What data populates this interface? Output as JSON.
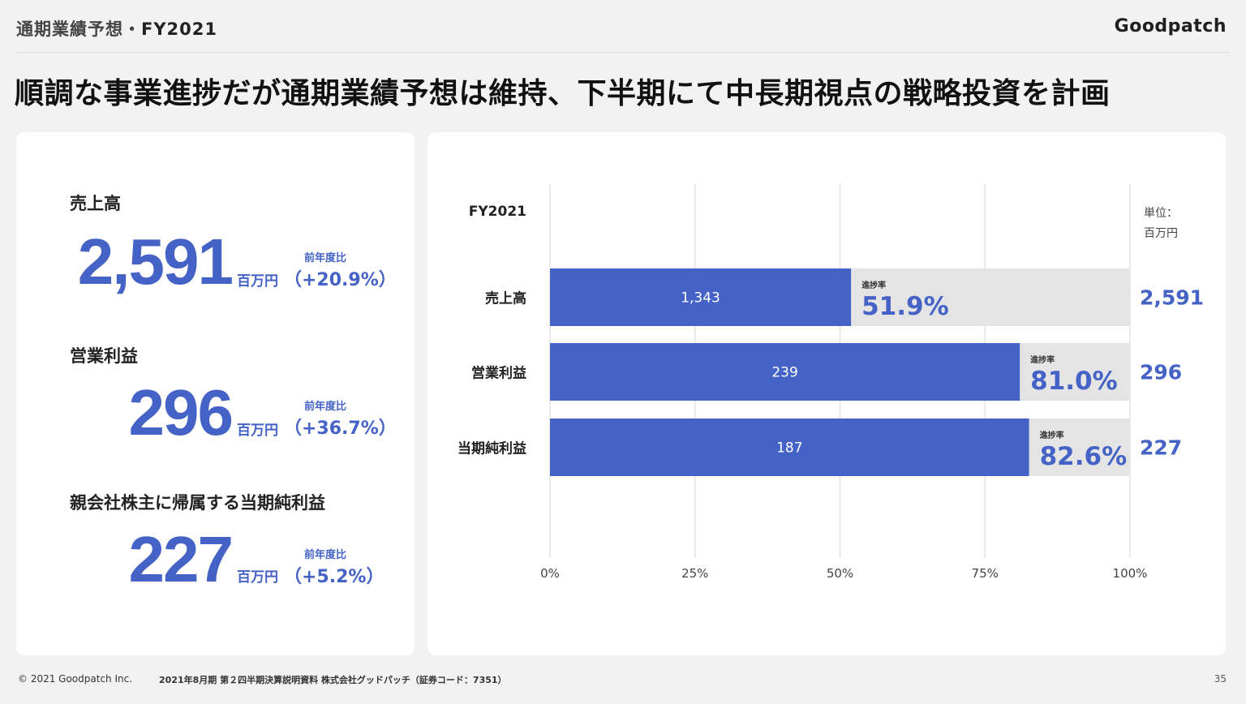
{
  "header": {
    "section_title": "通期業績予想",
    "separator": "・",
    "fiscal_year": "FY2021",
    "logo": "Goodpatch"
  },
  "headline": "順調な事業進捗だが通期業績予想は維持、下半期にて中長期視点の戦略投資を計画",
  "kpis": [
    {
      "label": "売上高",
      "value": "2,591",
      "unit": "百万円",
      "yoy_label": "前年度比",
      "yoy": "（+20.9%）"
    },
    {
      "label": "営業利益",
      "value": "296",
      "unit": "百万円",
      "yoy_label": "前年度比",
      "yoy": "（+36.7%）"
    },
    {
      "label": "親会社株主に帰属する当期純利益",
      "value": "227",
      "unit": "百万円",
      "yoy_label": "前年度比",
      "yoy": "（+5.2%）"
    }
  ],
  "chart_data": {
    "type": "bar",
    "orientation": "horizontal",
    "period_label": "FY2021",
    "unit_label": "単位：",
    "unit_value": "百万円",
    "progress_label": "進捗率",
    "categories": [
      "売上高",
      "営業利益",
      "当期純利益"
    ],
    "actual_values": [
      1343,
      239,
      187
    ],
    "actual_labels": [
      "1,343",
      "239",
      "187"
    ],
    "forecast_values": [
      2591,
      296,
      227
    ],
    "forecast_labels": [
      "2,591",
      "296",
      "227"
    ],
    "progress_percent": [
      51.9,
      81.0,
      82.6
    ],
    "progress_labels": [
      "51.9%",
      "81.0%",
      "82.6%"
    ],
    "x_ticks": [
      "0%",
      "25%",
      "50%",
      "75%",
      "100%"
    ],
    "xlim": [
      0,
      100
    ],
    "grid": true,
    "colors": {
      "actual": "#4562c6",
      "remaining": "#e4e4e4",
      "grid": "#dddddd"
    }
  },
  "footer": {
    "copyright": "© 2021 Goodpatch Inc.",
    "document": "2021年8月期 第２四半期決算説明資料 株式会社グッドパッチ（証券コード：7351）",
    "page_number": "35"
  }
}
